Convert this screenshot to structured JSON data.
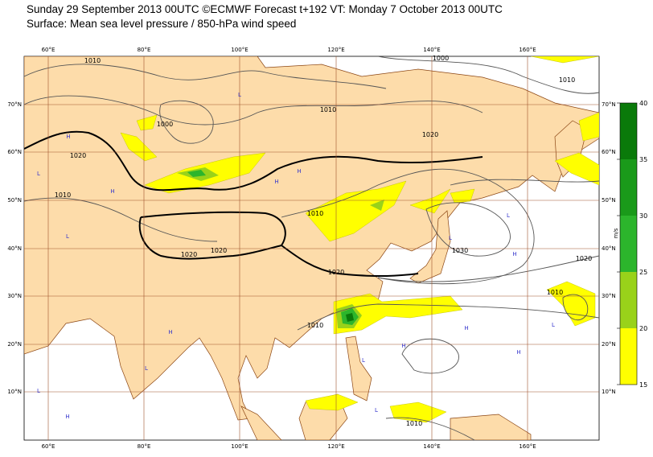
{
  "header": {
    "title": "Sunday 29 September 2013 00UTC ©ECMWF Forecast t+192 VT: Monday 7 October 2013 00UTC",
    "subtitle": "Surface: Mean sea level pressure / 850-hPa wind speed"
  },
  "map": {
    "lon_labels": [
      "60°E",
      "80°E",
      "100°E",
      "120°E",
      "140°E",
      "160°E"
    ],
    "lat_labels": [
      "70°N",
      "60°N",
      "50°N",
      "40°N",
      "30°N",
      "20°N",
      "10°N"
    ],
    "isobar_labels": [
      "1010",
      "1000",
      "1010",
      "1010",
      "1000",
      "1020",
      "1020",
      "1010",
      "1010",
      "1030",
      "1020",
      "1020",
      "1020",
      "1020",
      "1010",
      "1010",
      "1010"
    ],
    "pressure_centres": [
      "H",
      "L",
      "L",
      "H",
      "H",
      "L",
      "H",
      "L",
      "H",
      "L",
      "H",
      "L",
      "L",
      "H",
      "H",
      "L",
      "H",
      "L",
      "H",
      "L"
    ]
  },
  "colorbar": {
    "unit": "m/s",
    "ticks": [
      15,
      20,
      25,
      30,
      35,
      40
    ],
    "colors": [
      "#ffff00",
      "#99d21a",
      "#2cb52c",
      "#1a9a1a",
      "#0a7a0a"
    ]
  }
}
